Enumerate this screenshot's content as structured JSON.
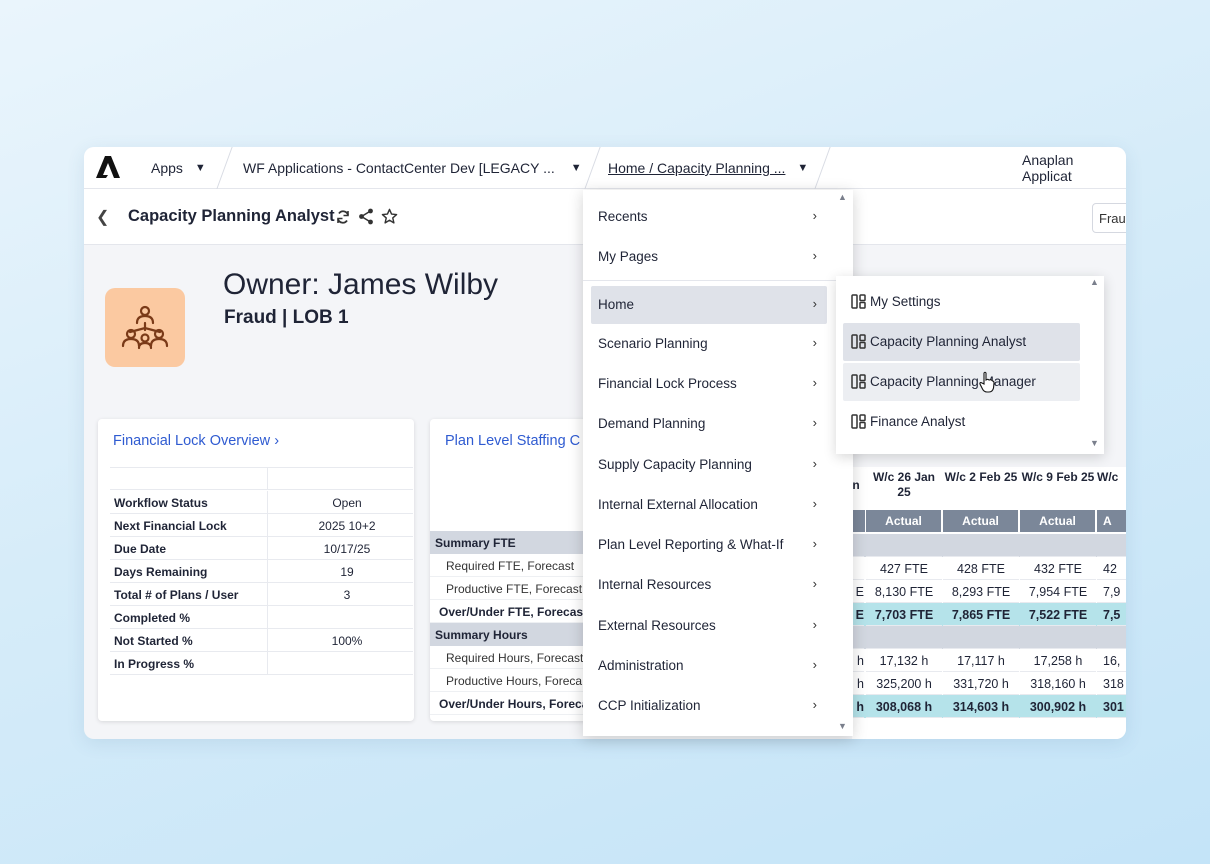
{
  "topbar": {
    "apps_label": "Apps",
    "workspace_label": "WF Applications - ContactCenter Dev [LEGACY ...",
    "breadcrumb_label": "Home / Capacity Planning ...",
    "right_label": "Anaplan Applicat"
  },
  "titlebar": {
    "title": "Capacity Planning Analyst",
    "filter_value": "Frau"
  },
  "header": {
    "owner": "Owner: James Wilby",
    "subtitle": "Fraud | LOB 1"
  },
  "financial_lock": {
    "title": "Financial Lock Overview",
    "rows": [
      {
        "label": "Workflow Status",
        "value": "Open"
      },
      {
        "label": "Next Financial Lock",
        "value": "2025 10+2"
      },
      {
        "label": "Due Date",
        "value": "10/17/25"
      },
      {
        "label": "Days Remaining",
        "value": "19"
      },
      {
        "label": "Total # of Plans / User",
        "value": "3"
      },
      {
        "label": "Completed %",
        "value": ""
      },
      {
        "label": "Not Started %",
        "value": "100%"
      },
      {
        "label": "In Progress %",
        "value": ""
      }
    ]
  },
  "staffing": {
    "title": "Plan Level Staffing C",
    "rows": [
      {
        "label": "Summary FTE",
        "kind": "head"
      },
      {
        "label": "Required FTE, Forecast",
        "kind": "sub"
      },
      {
        "label": "Productive FTE, Forecast",
        "kind": "sub"
      },
      {
        "label": "Over/Under FTE, Forecast",
        "kind": "bold"
      },
      {
        "label": "Summary Hours",
        "kind": "head"
      },
      {
        "label": "Required Hours, Forecast",
        "kind": "sub"
      },
      {
        "label": "Productive Hours, Foreca",
        "kind": "sub"
      },
      {
        "label": "Over/Under Hours, Foreca",
        "kind": "bold"
      }
    ]
  },
  "grid": {
    "partial_col_head": "n",
    "columns": [
      {
        "head": "W/c 26 Jan 25",
        "type": "Actual"
      },
      {
        "head": "W/c 2 Feb 25",
        "type": "Actual"
      },
      {
        "head": "W/c 9 Feb 25",
        "type": "Actual"
      },
      {
        "head": "W/c",
        "type": "A"
      }
    ],
    "partial_col": [
      "",
      "",
      "E",
      "E",
      "",
      "h",
      "h",
      "h"
    ],
    "rows": [
      [
        "",
        "",
        "",
        ""
      ],
      [
        "427 FTE",
        "428 FTE",
        "432 FTE",
        "42"
      ],
      [
        "8,130 FTE",
        "8,293 FTE",
        "7,954 FTE",
        "7,9"
      ],
      [
        "7,703 FTE",
        "7,865 FTE",
        "7,522 FTE",
        "7,5"
      ],
      [
        "",
        "",
        "",
        ""
      ],
      [
        "17,132 h",
        "17,117 h",
        "17,258 h",
        "16,"
      ],
      [
        "325,200 h",
        "331,720 h",
        "318,160 h",
        "318"
      ],
      [
        "308,068 h",
        "314,603 h",
        "300,902 h",
        "301"
      ]
    ]
  },
  "menu": {
    "items": [
      {
        "label": "Recents"
      },
      {
        "label": "My Pages"
      },
      {
        "label": "Home"
      },
      {
        "label": "Scenario Planning"
      },
      {
        "label": "Financial Lock Process"
      },
      {
        "label": "Demand Planning"
      },
      {
        "label": "Supply Capacity Planning"
      },
      {
        "label": "Internal External Allocation"
      },
      {
        "label": "Plan Level Reporting & What-If"
      },
      {
        "label": "Internal Resources"
      },
      {
        "label": "External Resources"
      },
      {
        "label": "Administration"
      },
      {
        "label": "CCP Initialization"
      }
    ]
  },
  "submenu": {
    "items": [
      {
        "label": "My Settings"
      },
      {
        "label": "Capacity Planning Analyst"
      },
      {
        "label": "Capacity Planning Manager"
      },
      {
        "label": "Finance Analyst"
      }
    ]
  },
  "colors": {
    "link_blue": "#2f5bd1",
    "avatar_bg": "#fbc9a1",
    "avatar_icon": "#7a3a18",
    "actual_header": "#7b8799",
    "total_row_teal": "#b5e3ea",
    "section_grey": "#d2d7e0",
    "menu_active": "#dfe2e9"
  },
  "icons": {
    "logo": "anaplan-logo",
    "avatar": "team-hierarchy-icon",
    "refresh": "refresh-icon",
    "share": "share-icon",
    "favorite": "star-icon",
    "page": "page-layout-icon"
  }
}
